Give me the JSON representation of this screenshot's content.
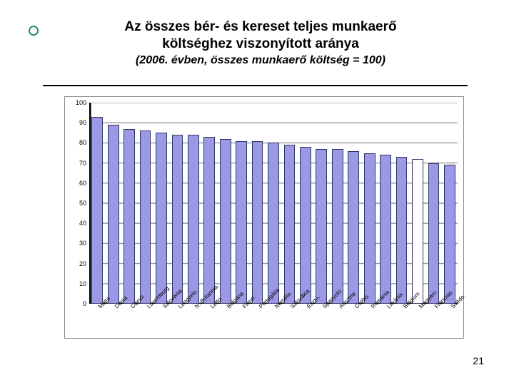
{
  "slide": {
    "title_line1": "Az összes bér- és kereset teljes munkaerő",
    "title_line2": "költséghez viszonyított aránya",
    "subtitle": "(2006. évben, összes munkaerő költség = 100)",
    "page_number": "21"
  },
  "chart": {
    "type": "bar",
    "ylim": [
      0,
      100
    ],
    "ytick_step": 10,
    "yticks": [
      0,
      10,
      20,
      30,
      40,
      50,
      60,
      70,
      80,
      90,
      100
    ],
    "background_color": "#ffffff",
    "grid_color": "#999999",
    "axis_color": "#000000",
    "bar_fill": "#9999e6",
    "bar_border": "#333366",
    "highlight_fill": "#ffffff",
    "bar_width": 0.7,
    "label_fontsize": 8,
    "ylabel_fontsize": 9,
    "categories": [
      "Málta",
      "Dánia",
      "Ciprus",
      "Luxemburg",
      "Szlovénia",
      "Lengyelo.",
      "N.-Britannia",
      "Letto.",
      "Bulgária",
      "Finno.",
      "Portugália",
      "Néméto.",
      "Szlovákia",
      "Észto.",
      "Spanyolo.",
      "Ausztria",
      "Csého.",
      "Románia",
      "Litvánia",
      "Belgium",
      "Magyaro.",
      "Franciao.",
      "Svédo."
    ],
    "values": [
      93,
      89,
      87,
      86,
      85,
      84,
      84,
      83,
      82,
      81,
      81,
      80,
      79,
      78,
      77,
      77,
      76,
      75,
      74,
      73,
      72,
      70,
      69
    ],
    "highlight_index": 20
  }
}
